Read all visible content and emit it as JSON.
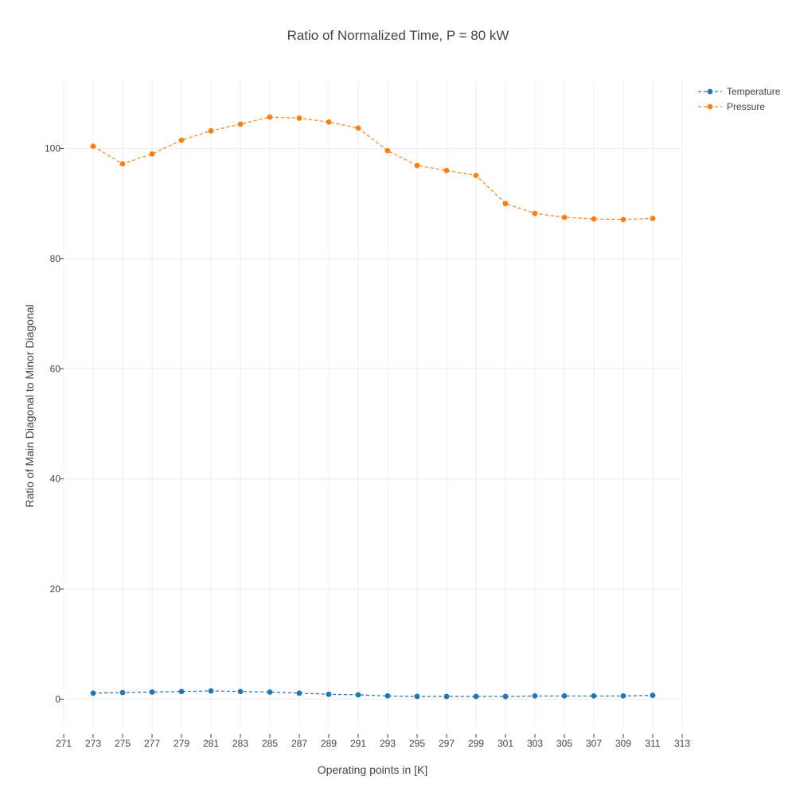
{
  "chart_data": {
    "type": "line",
    "title": "Ratio of Normalized Time, P = 80 kW",
    "xlabel": "Operating points in [K]",
    "ylabel": "Ratio of Main Diagonal to Minor Diagonal",
    "xlim": [
      271,
      313
    ],
    "ylim": [
      -6.3,
      112.5
    ],
    "x_ticks": [
      271,
      273,
      275,
      277,
      279,
      281,
      283,
      285,
      287,
      289,
      291,
      293,
      295,
      297,
      299,
      301,
      303,
      305,
      307,
      309,
      311,
      313
    ],
    "y_ticks": [
      0,
      20,
      40,
      60,
      80,
      100
    ],
    "grid": true,
    "legend_position": "top-right",
    "x": [
      273,
      275,
      277,
      279,
      281,
      283,
      285,
      287,
      289,
      291,
      293,
      295,
      297,
      299,
      301,
      303,
      305,
      307,
      309,
      311
    ],
    "series": [
      {
        "name": "Temperature",
        "color": "#1f77b4",
        "line_style": "dashed",
        "marker": "circle",
        "values": [
          1.1,
          1.2,
          1.3,
          1.4,
          1.5,
          1.4,
          1.3,
          1.1,
          0.9,
          0.8,
          0.6,
          0.5,
          0.5,
          0.5,
          0.5,
          0.6,
          0.6,
          0.6,
          0.6,
          0.7
        ]
      },
      {
        "name": "Pressure",
        "color": "#ff7f0e",
        "line_style": "dashed",
        "marker": "circle",
        "values": [
          100.4,
          97.2,
          99.0,
          101.5,
          103.2,
          104.4,
          105.7,
          105.5,
          104.8,
          103.7,
          99.6,
          96.9,
          96.0,
          95.1,
          90.0,
          88.2,
          87.5,
          87.2,
          87.1,
          87.3
        ]
      }
    ]
  }
}
